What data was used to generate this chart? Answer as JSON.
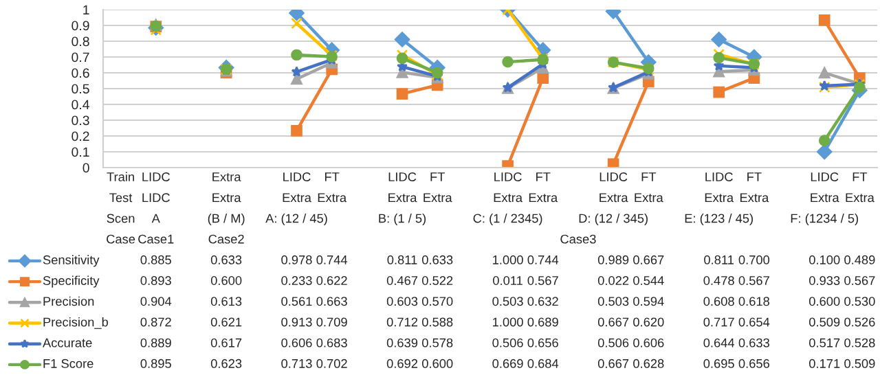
{
  "chart_data": {
    "type": "line",
    "categories": [
      "Train\nTest\nScen\nCase",
      "LIDC\nLIDC\nA\nCase1",
      null,
      "Extra\nExtra\n(B / M)\nCase2",
      null,
      "LIDC\nExtra\nA: (12 / 45)",
      "FT\nExtra",
      null,
      "LIDC\nExtra\nB: (1 / 5)",
      "FT\nExtra",
      null,
      "LIDC\nExtra\nC: (1 / 2345)",
      "FT\nExtra",
      null,
      "LIDC\nExtra\nD: (12 / 345)",
      "FT\nExtra",
      null,
      "LIDC\nExtra\nE: (123 / 45)",
      "FT\nExtra",
      null,
      "LIDC\nExtra\nF: (1234 / 5)",
      "FT\nExtra"
    ],
    "series": [
      {
        "name": "Sensitivity",
        "color": "#5b9bd5",
        "marker": "diamond",
        "values": [
          null,
          0.885,
          null,
          0.633,
          null,
          0.978,
          0.744,
          null,
          0.811,
          0.633,
          null,
          1.0,
          0.744,
          null,
          0.989,
          0.667,
          null,
          0.811,
          0.7,
          null,
          0.1,
          0.489
        ],
        "value_labels": [
          null,
          "0.885",
          null,
          "0.633",
          null,
          "0.978",
          "0.744",
          null,
          "0.811",
          "0.633",
          null,
          "1.000",
          "0.744",
          null,
          "0.989",
          "0.667",
          null,
          "0.811",
          "0.700",
          null,
          "0.100",
          "0.489"
        ]
      },
      {
        "name": "Specificity",
        "color": "#ed7d31",
        "marker": "square",
        "values": [
          null,
          0.893,
          null,
          0.6,
          null,
          0.233,
          0.622,
          null,
          0.467,
          0.522,
          null,
          0.011,
          0.567,
          null,
          0.022,
          0.544,
          null,
          0.478,
          0.567,
          null,
          0.933,
          0.567
        ],
        "value_labels": [
          null,
          "0.893",
          null,
          "0.600",
          null,
          "0.233",
          "0.622",
          null,
          "0.467",
          "0.522",
          null,
          "0.011",
          "0.567",
          null,
          "0.022",
          "0.544",
          null,
          "0.478",
          "0.567",
          null,
          "0.933",
          "0.567"
        ]
      },
      {
        "name": "Precision",
        "color": "#a5a5a5",
        "marker": "triangle",
        "values": [
          null,
          0.904,
          null,
          0.613,
          null,
          0.561,
          0.663,
          null,
          0.603,
          0.57,
          null,
          0.503,
          0.632,
          null,
          0.503,
          0.594,
          null,
          0.608,
          0.618,
          null,
          0.6,
          0.53
        ],
        "value_labels": [
          null,
          "0.904",
          null,
          "0.613",
          null,
          "0.561",
          "0.663",
          null,
          "0.603",
          "0.570",
          null,
          "0.503",
          "0.632",
          null,
          "0.503",
          "0.594",
          null,
          "0.608",
          "0.618",
          null,
          "0.600",
          "0.530"
        ]
      },
      {
        "name": "Precision_b",
        "color": "#ffc000",
        "marker": "cross",
        "values": [
          null,
          0.872,
          null,
          0.621,
          null,
          0.913,
          0.709,
          null,
          0.712,
          0.588,
          null,
          1.0,
          0.689,
          null,
          0.667,
          0.62,
          null,
          0.717,
          0.654,
          null,
          0.509,
          0.526
        ],
        "value_labels": [
          null,
          "0.872",
          null,
          "0.621",
          null,
          "0.913",
          "0.709",
          null,
          "0.712",
          "0.588",
          null,
          "1.000",
          "0.689",
          null,
          "0.667",
          "0.620",
          null,
          "0.717",
          "0.654",
          null,
          "0.509",
          "0.526"
        ]
      },
      {
        "name": "Accurate",
        "color": "#4472c4",
        "marker": "star",
        "values": [
          null,
          0.889,
          null,
          0.617,
          null,
          0.606,
          0.683,
          null,
          0.639,
          0.578,
          null,
          0.506,
          0.656,
          null,
          0.506,
          0.606,
          null,
          0.644,
          0.633,
          null,
          0.517,
          0.528
        ],
        "value_labels": [
          null,
          "0.889",
          null,
          "0.617",
          null,
          "0.606",
          "0.683",
          null,
          "0.639",
          "0.578",
          null,
          "0.506",
          "0.656",
          null,
          "0.506",
          "0.606",
          null,
          "0.644",
          "0.633",
          null,
          "0.517",
          "0.528"
        ]
      },
      {
        "name": "F1 Score",
        "color": "#70ad47",
        "marker": "circle",
        "values": [
          null,
          0.895,
          null,
          0.623,
          null,
          0.713,
          0.702,
          null,
          0.692,
          0.6,
          null,
          0.669,
          0.684,
          null,
          0.667,
          0.628,
          null,
          0.695,
          0.656,
          null,
          0.171,
          0.509
        ],
        "value_labels": [
          null,
          "0.895",
          null,
          "0.623",
          null,
          "0.713",
          "0.702",
          null,
          "0.692",
          "0.600",
          null,
          "0.669",
          "0.684",
          null,
          "0.667",
          "0.628",
          null,
          "0.695",
          "0.656",
          null,
          "0.171",
          "0.509"
        ]
      }
    ],
    "annotations": [
      "Case3"
    ],
    "ylim": [
      0,
      1
    ],
    "yticks": [
      0,
      0.1,
      0.2,
      0.3,
      0.4,
      0.5,
      0.6,
      0.7,
      0.8,
      0.9,
      1
    ],
    "grid": "y",
    "legend": "bottom left",
    "line_style": "solid"
  }
}
